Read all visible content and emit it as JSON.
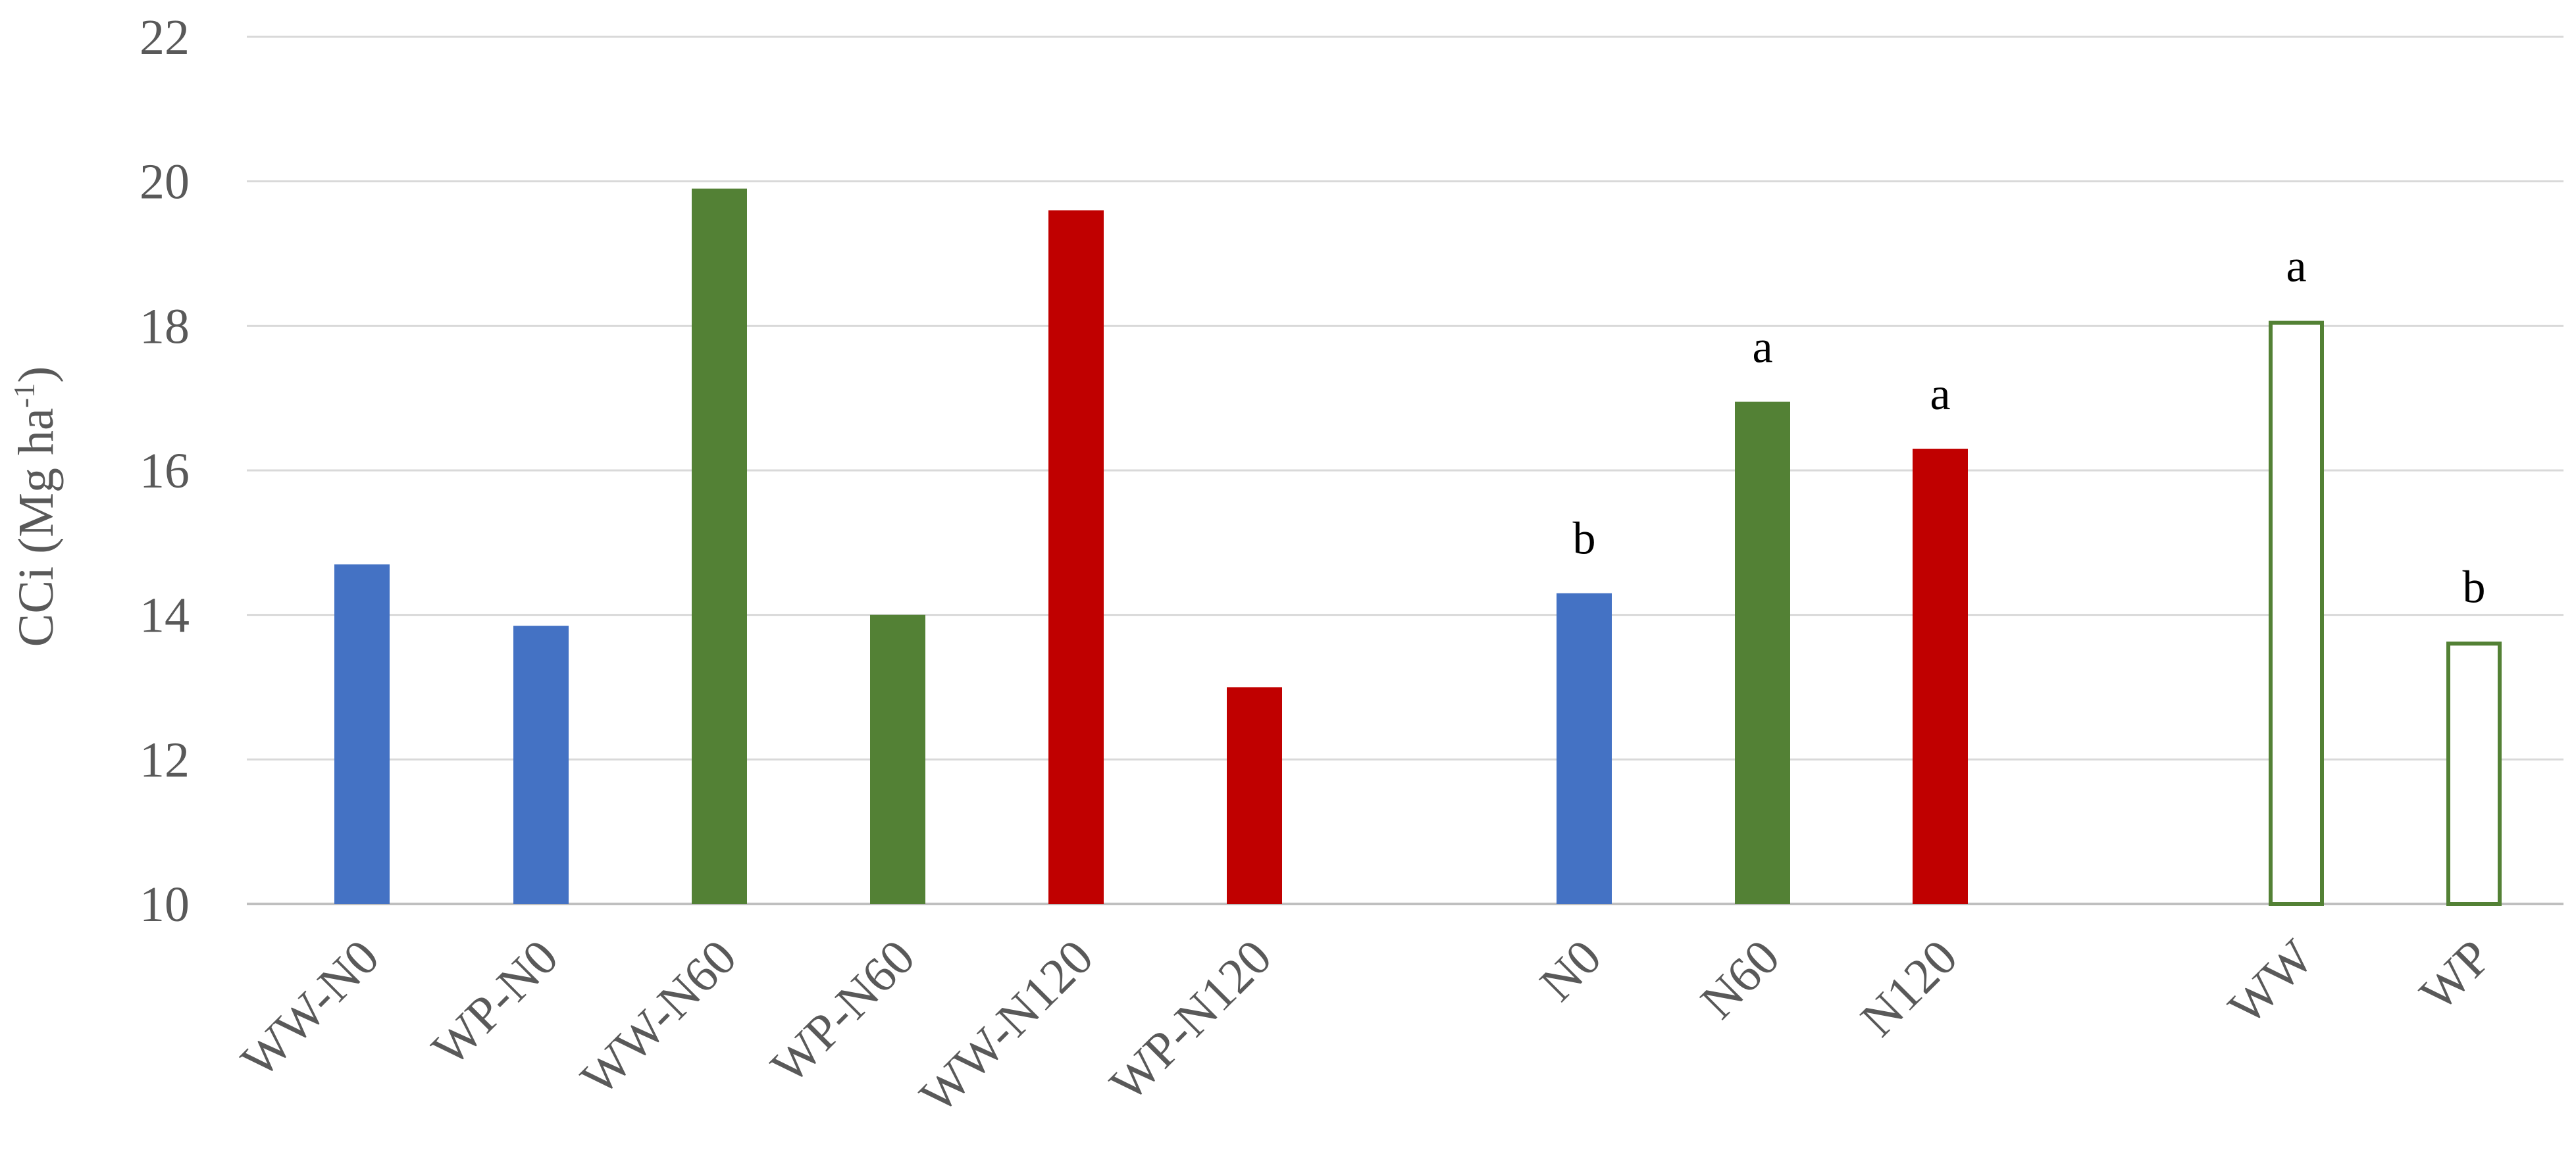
{
  "chart_data": {
    "type": "bar",
    "ylabel": {
      "main": "CCi (Mg ha",
      "sup": "-1",
      "end": ")"
    },
    "ylim": [
      10,
      22
    ],
    "yticks": [
      10,
      12,
      14,
      16,
      18,
      20,
      22
    ],
    "grid": true,
    "bars": [
      {
        "category": "WW-N0",
        "value": 14.7,
        "color": "#4472C4",
        "style": "filled",
        "label": ""
      },
      {
        "category": "WP-N0",
        "value": 13.85,
        "color": "#4472C4",
        "style": "filled",
        "label": ""
      },
      {
        "category": "WW-N60",
        "value": 19.9,
        "color": "#538135",
        "style": "filled",
        "label": ""
      },
      {
        "category": "WP-N60",
        "value": 14.0,
        "color": "#538135",
        "style": "filled",
        "label": ""
      },
      {
        "category": "WW-N120",
        "value": 19.6,
        "color": "#C00000",
        "style": "filled",
        "label": ""
      },
      {
        "category": "WP-N120",
        "value": 13.0,
        "color": "#C00000",
        "style": "filled",
        "label": ""
      },
      {
        "category": "N0",
        "value": 14.3,
        "color": "#4472C4",
        "style": "filled",
        "label": "b"
      },
      {
        "category": "N60",
        "value": 16.95,
        "color": "#538135",
        "style": "filled",
        "label": "a"
      },
      {
        "category": "N120",
        "value": 16.3,
        "color": "#C00000",
        "style": "filled",
        "label": "a"
      },
      {
        "category": "WW",
        "value": 18.07,
        "color": "#538135",
        "style": "outline",
        "label": "a"
      },
      {
        "category": "WP",
        "value": 13.63,
        "color": "#538135",
        "style": "outline",
        "label": "b"
      }
    ]
  }
}
